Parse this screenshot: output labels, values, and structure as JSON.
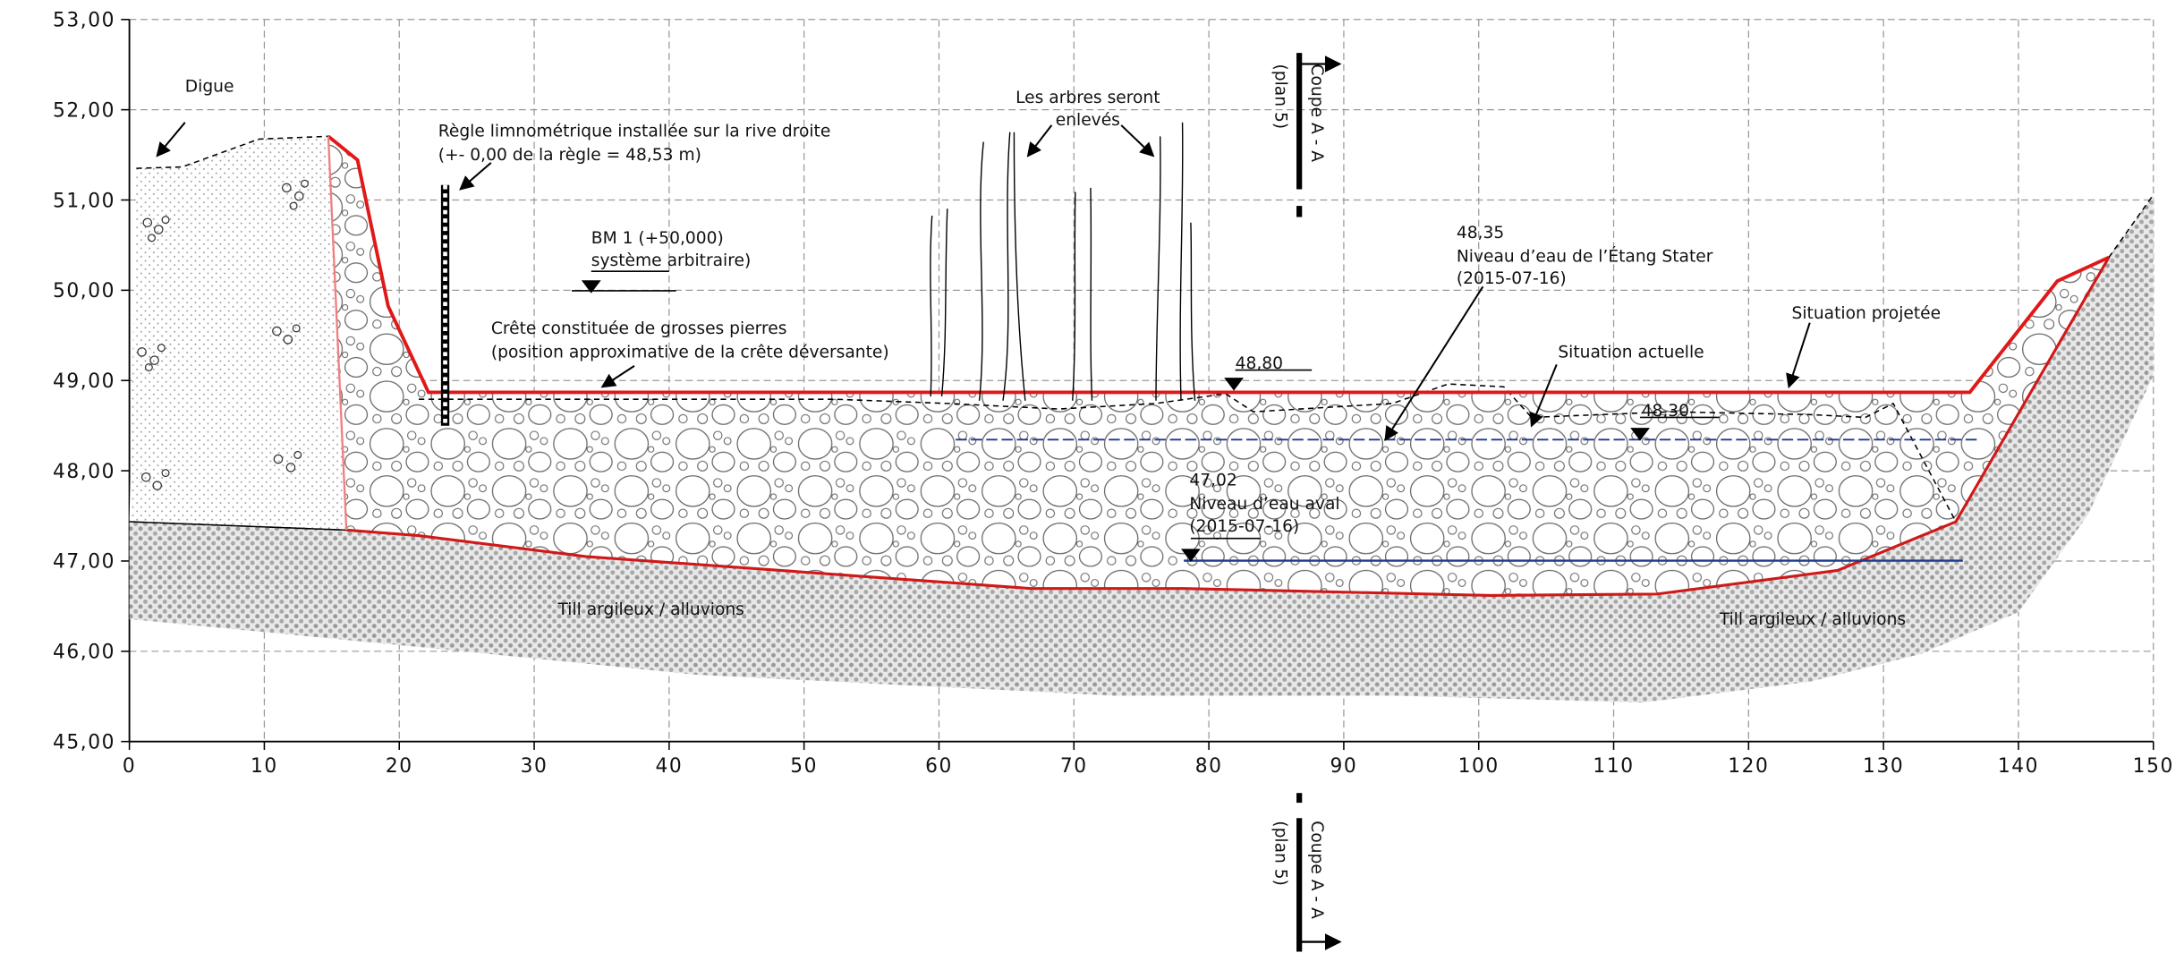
{
  "axes": {
    "x_ticks": [
      0,
      10,
      20,
      30,
      40,
      50,
      60,
      70,
      80,
      90,
      100,
      110,
      120,
      130,
      140,
      150
    ],
    "y_ticks": [
      "45,00",
      "46,00",
      "47,00",
      "48,00",
      "49,00",
      "50,00",
      "51,00",
      "52,00",
      "53,00"
    ]
  },
  "annotations": {
    "dike": "Digue",
    "ruler": [
      "Règle limnométrique installée sur la rive droite",
      "(+- 0,00 de la règle = 48,53 m)"
    ],
    "benchmark": [
      "BM 1 (+50,000)",
      "système arbitraire)"
    ],
    "crest": [
      "Crête constituée de grosses pierres",
      "(position approximative de la crête déversante)"
    ],
    "trees": [
      "Les arbres seront",
      "enlevés"
    ],
    "level_crest": "48,80",
    "upstream": [
      "48,35",
      "Niveau d’eau de l’Étang Stater",
      "(2015-07-16)"
    ],
    "projected": "Situation projetée",
    "current": "Situation actuelle",
    "level_current": "48,30",
    "downstream": [
      "47,02",
      "Niveau d’eau aval",
      "(2015-07-16)"
    ],
    "soil_left": "Till argileux / alluvions",
    "soil_right": "Till argileux / alluvions"
  },
  "section_marker": {
    "title": "Coupe A - A",
    "reference": "(plan 5)"
  }
}
